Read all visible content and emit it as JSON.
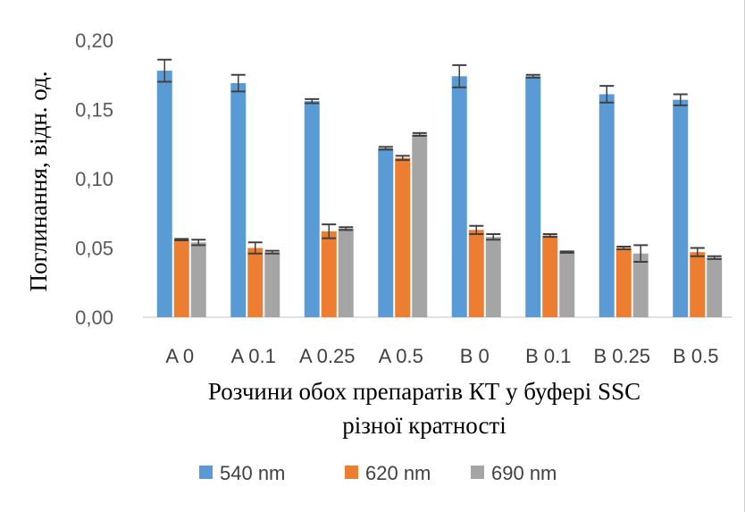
{
  "chart_data": {
    "type": "bar",
    "ylabel": "Поглинання, відн. од.",
    "xlabel_lines": [
      "Розчини обох препаратів КТ у буфері SSC",
      "різної кратності"
    ],
    "ylim": [
      0,
      0.2
    ],
    "yticks": [
      "0,00",
      "0,05",
      "0,10",
      "0,15",
      "0,20"
    ],
    "categories": [
      "A 0",
      "A 0.1",
      "A 0.25",
      "A 0.5",
      "B 0",
      "B 0.1",
      "B 0.25",
      "B 0.5"
    ],
    "series": [
      {
        "name": "540 nm",
        "color": "#5B9BD5",
        "values": [
          0.178,
          0.169,
          0.156,
          0.122,
          0.174,
          0.174,
          0.161,
          0.157
        ],
        "errors": [
          0.008,
          0.006,
          0.0015,
          0.001,
          0.008,
          0.001,
          0.006,
          0.004
        ]
      },
      {
        "name": "620 nm",
        "color": "#ED7D31",
        "values": [
          0.056,
          0.05,
          0.062,
          0.115,
          0.063,
          0.059,
          0.05,
          0.047
        ],
        "errors": [
          0.0005,
          0.004,
          0.005,
          0.0015,
          0.003,
          0.001,
          0.001,
          0.003
        ]
      },
      {
        "name": "690 nm",
        "color": "#A5A5A5",
        "values": [
          0.054,
          0.047,
          0.064,
          0.132,
          0.058,
          0.047,
          0.046,
          0.043
        ],
        "errors": [
          0.002,
          0.001,
          0.001,
          0.001,
          0.002,
          0.0005,
          0.006,
          0.001
        ]
      }
    ],
    "grid": false,
    "legend_position": "bottom"
  }
}
